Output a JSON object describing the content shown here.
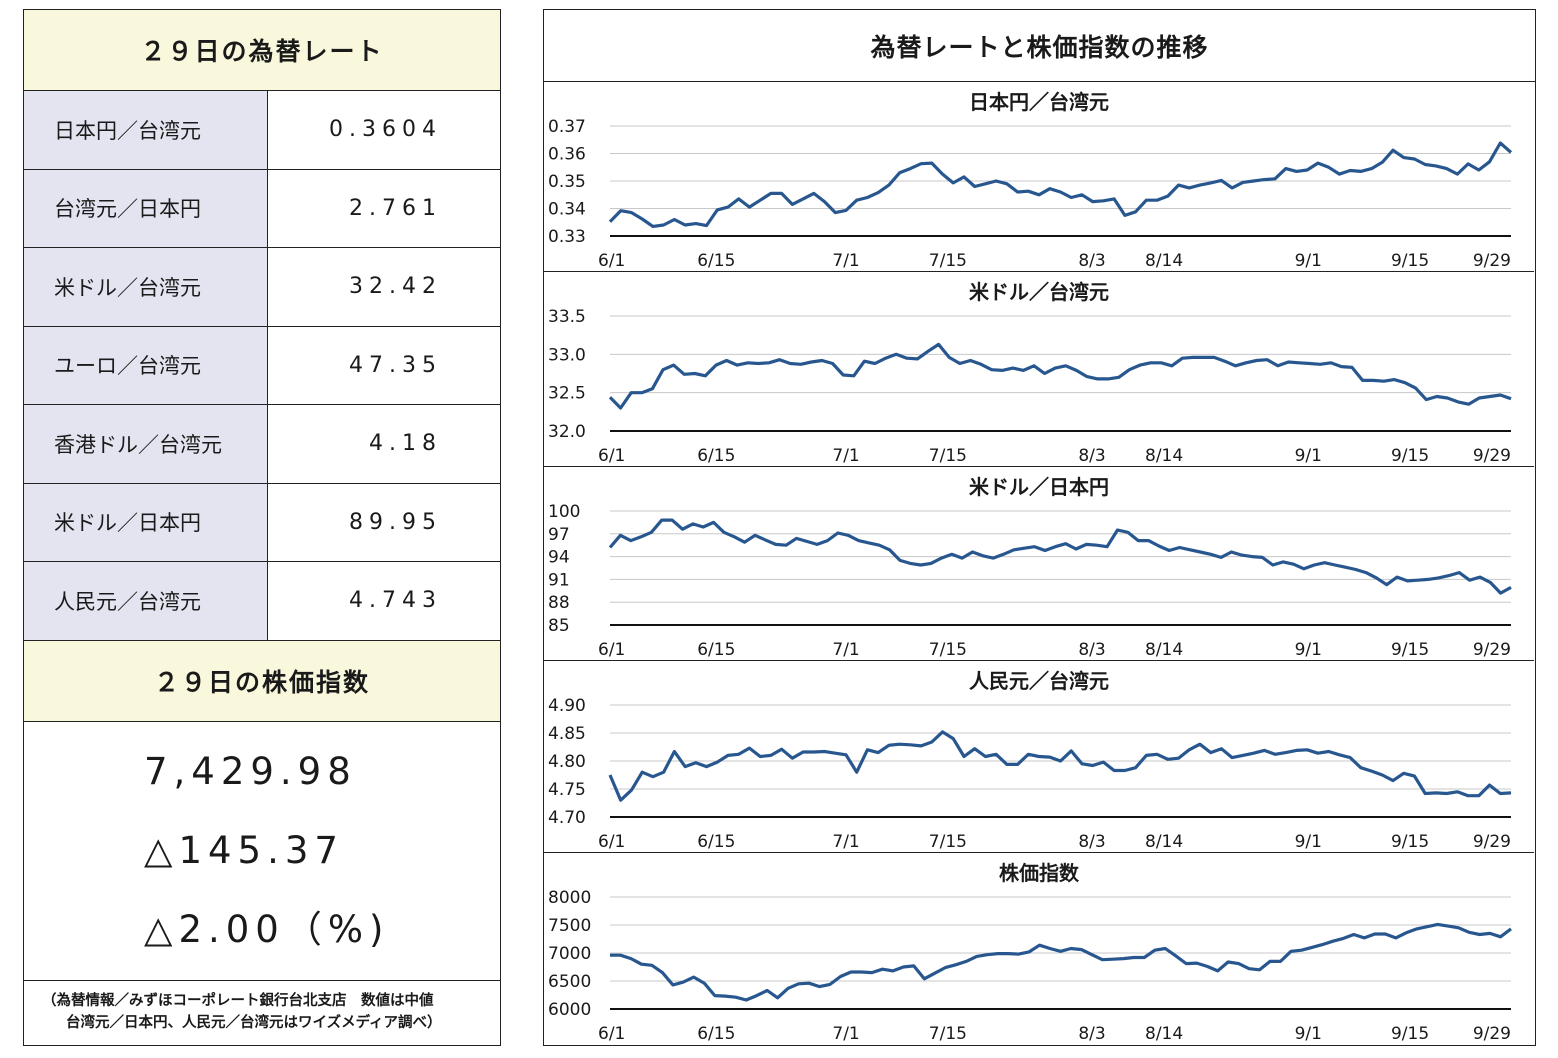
{
  "left": {
    "rates_title": "２９日の為替レート",
    "rates": [
      {
        "name": "日本円／台湾元",
        "value": "0.3604"
      },
      {
        "name": "台湾元／日本円",
        "value": "2.761"
      },
      {
        "name": "米ドル／台湾元",
        "value": "32.42"
      },
      {
        "name": "ユーロ／台湾元",
        "value": "47.35"
      },
      {
        "name": "香港ドル／台湾元",
        "value": "4.18"
      },
      {
        "name": "米ドル／日本円",
        "value": "89.95"
      },
      {
        "name": "人民元／台湾元",
        "value": "4.743"
      }
    ],
    "stock_title": "２９日の株価指数",
    "stock_index": "7,429.98",
    "stock_change": "△145.37",
    "stock_change_pct": "△2.00（%)",
    "note_line1": "（為替情報／みずほコーポレート銀行台北支店　数値は中値",
    "note_line2": "台湾元／日本円、人民元／台湾元はワイズメディア調べ）"
  },
  "right_title": "為替レートと株価指数の推移",
  "line_color": "#28578f",
  "chart_data": [
    {
      "type": "line",
      "title": "日本円／台湾元",
      "x_ticks": [
        "6/1",
        "6/15",
        "7/1",
        "7/15",
        "8/3",
        "8/14",
        "9/1",
        "9/15",
        "9/29"
      ],
      "y_ticks": [
        "0.33",
        "0.34",
        "0.35",
        "0.36",
        "0.37"
      ],
      "ylim": [
        0.33,
        0.37
      ],
      "values": [
        0.3352,
        0.3392,
        0.3385,
        0.3362,
        0.3335,
        0.334,
        0.336,
        0.334,
        0.3345,
        0.3338,
        0.3395,
        0.3405,
        0.3435,
        0.3405,
        0.343,
        0.3455,
        0.3455,
        0.3415,
        0.3435,
        0.3455,
        0.3425,
        0.3385,
        0.3393,
        0.343,
        0.344,
        0.3458,
        0.3485,
        0.353,
        0.3545,
        0.3563,
        0.3565,
        0.3525,
        0.3493,
        0.3515,
        0.348,
        0.349,
        0.35,
        0.349,
        0.346,
        0.3463,
        0.345,
        0.3472,
        0.346,
        0.344,
        0.345,
        0.3425,
        0.3428,
        0.3435,
        0.3375,
        0.3388,
        0.343,
        0.343,
        0.3445,
        0.3485,
        0.3475,
        0.3485,
        0.3493,
        0.3502,
        0.3475,
        0.3495,
        0.35,
        0.3505,
        0.3508,
        0.3545,
        0.3535,
        0.354,
        0.3565,
        0.355,
        0.3525,
        0.3538,
        0.3535,
        0.3545,
        0.3568,
        0.3612,
        0.3585,
        0.358,
        0.356,
        0.3555,
        0.3545,
        0.3525,
        0.3562,
        0.354,
        0.357,
        0.3638,
        0.3604
      ]
    },
    {
      "type": "line",
      "title": "米ドル／台湾元",
      "x_ticks": [
        "6/1",
        "6/15",
        "7/1",
        "7/15",
        "8/3",
        "8/14",
        "9/1",
        "9/15",
        "9/29"
      ],
      "y_ticks": [
        "32.0",
        "32.5",
        "33.0",
        "33.5"
      ],
      "ylim": [
        32.0,
        33.5
      ],
      "values": [
        32.44,
        32.3,
        32.5,
        32.5,
        32.55,
        32.8,
        32.86,
        32.74,
        32.75,
        32.72,
        32.86,
        32.92,
        32.86,
        32.89,
        32.88,
        32.89,
        32.93,
        32.88,
        32.87,
        32.9,
        32.92,
        32.88,
        32.73,
        32.72,
        32.91,
        32.88,
        32.95,
        33.0,
        32.95,
        32.94,
        33.04,
        33.13,
        32.96,
        32.88,
        32.92,
        32.87,
        32.8,
        32.79,
        32.82,
        32.79,
        32.85,
        32.75,
        32.82,
        32.85,
        32.79,
        32.71,
        32.68,
        32.68,
        32.7,
        32.8,
        32.86,
        32.89,
        32.89,
        32.85,
        32.95,
        32.96,
        32.96,
        32.96,
        32.91,
        32.85,
        32.89,
        32.92,
        32.93,
        32.85,
        32.9,
        32.89,
        32.88,
        32.87,
        32.89,
        32.84,
        32.83,
        32.66,
        32.66,
        32.65,
        32.67,
        32.63,
        32.56,
        32.41,
        32.45,
        32.43,
        32.38,
        32.35,
        32.43,
        32.45,
        32.47,
        32.42
      ]
    },
    {
      "type": "line",
      "title": "米ドル／日本円",
      "x_ticks": [
        "6/1",
        "6/15",
        "7/1",
        "7/15",
        "8/3",
        "8/14",
        "9/1",
        "9/15",
        "9/29"
      ],
      "y_ticks": [
        "85",
        "88",
        "91",
        "94",
        "97",
        "100"
      ],
      "ylim": [
        85,
        100
      ],
      "values": [
        95.2,
        96.8,
        96.1,
        96.6,
        97.2,
        98.8,
        98.8,
        97.6,
        98.3,
        97.9,
        98.5,
        97.2,
        96.6,
        95.9,
        96.8,
        96.2,
        95.6,
        95.5,
        96.4,
        96.0,
        95.6,
        96.1,
        97.1,
        96.8,
        96.1,
        95.8,
        95.5,
        94.9,
        93.5,
        93.1,
        92.9,
        93.1,
        93.8,
        94.3,
        93.8,
        94.6,
        94.1,
        93.8,
        94.3,
        94.9,
        95.1,
        95.3,
        94.8,
        95.3,
        95.7,
        95.0,
        95.6,
        95.5,
        95.3,
        97.5,
        97.2,
        96.1,
        96.1,
        95.4,
        94.8,
        95.2,
        94.9,
        94.6,
        94.3,
        93.9,
        94.6,
        94.2,
        94.0,
        93.9,
        92.9,
        93.3,
        93.0,
        92.4,
        92.9,
        93.2,
        92.9,
        92.6,
        92.3,
        91.9,
        91.2,
        90.3,
        91.3,
        90.8,
        90.9,
        91.0,
        91.2,
        91.5,
        91.9,
        90.9,
        91.3,
        90.6,
        89.2,
        89.95
      ]
    },
    {
      "type": "line",
      "title": "人民元／台湾元",
      "x_ticks": [
        "6/1",
        "6/15",
        "7/1",
        "7/15",
        "8/3",
        "8/14",
        "9/1",
        "9/15",
        "9/29"
      ],
      "y_ticks": [
        "4.70",
        "4.75",
        "4.80",
        "4.85",
        "4.90"
      ],
      "ylim": [
        4.7,
        4.9
      ],
      "values": [
        4.775,
        4.73,
        4.748,
        4.78,
        4.772,
        4.78,
        4.817,
        4.79,
        4.797,
        4.79,
        4.798,
        4.81,
        4.812,
        4.823,
        4.808,
        4.81,
        4.821,
        4.805,
        4.816,
        4.816,
        4.817,
        4.814,
        4.811,
        4.78,
        4.82,
        4.815,
        4.828,
        4.83,
        4.829,
        4.827,
        4.834,
        4.852,
        4.84,
        4.808,
        4.822,
        4.808,
        4.812,
        4.794,
        4.794,
        4.812,
        4.808,
        4.807,
        4.8,
        4.818,
        4.795,
        4.792,
        4.798,
        4.783,
        4.783,
        4.788,
        4.81,
        4.812,
        4.803,
        4.805,
        4.82,
        4.83,
        4.815,
        4.822,
        4.806,
        4.81,
        4.814,
        4.819,
        4.812,
        4.815,
        4.819,
        4.82,
        4.814,
        4.817,
        4.811,
        4.806,
        4.788,
        4.782,
        4.775,
        4.765,
        4.778,
        4.773,
        4.742,
        4.743,
        4.742,
        4.745,
        4.738,
        4.738,
        4.757,
        4.742,
        4.743
      ]
    },
    {
      "type": "line",
      "title": "株価指数",
      "x_ticks": [
        "6/1",
        "6/15",
        "7/1",
        "7/15",
        "8/3",
        "8/14",
        "9/1",
        "9/15",
        "9/29"
      ],
      "y_ticks": [
        "6000",
        "6500",
        "7000",
        "7500",
        "8000"
      ],
      "ylim": [
        6000,
        8000
      ],
      "values": [
        6960,
        6960,
        6900,
        6800,
        6780,
        6650,
        6430,
        6480,
        6570,
        6460,
        6240,
        6230,
        6210,
        6160,
        6240,
        6330,
        6200,
        6370,
        6450,
        6460,
        6400,
        6440,
        6580,
        6660,
        6660,
        6650,
        6710,
        6680,
        6750,
        6770,
        6540,
        6640,
        6740,
        6790,
        6850,
        6940,
        6970,
        6990,
        6990,
        6980,
        7020,
        7140,
        7080,
        7030,
        7080,
        7060,
        6970,
        6880,
        6890,
        6900,
        6920,
        6920,
        7050,
        7080,
        6950,
        6810,
        6820,
        6760,
        6680,
        6840,
        6810,
        6720,
        6700,
        6850,
        6850,
        7030,
        7050,
        7100,
        7150,
        7210,
        7260,
        7330,
        7270,
        7340,
        7340,
        7270,
        7360,
        7430,
        7470,
        7510,
        7480,
        7450,
        7370,
        7330,
        7350,
        7290,
        7429.98
      ]
    }
  ]
}
